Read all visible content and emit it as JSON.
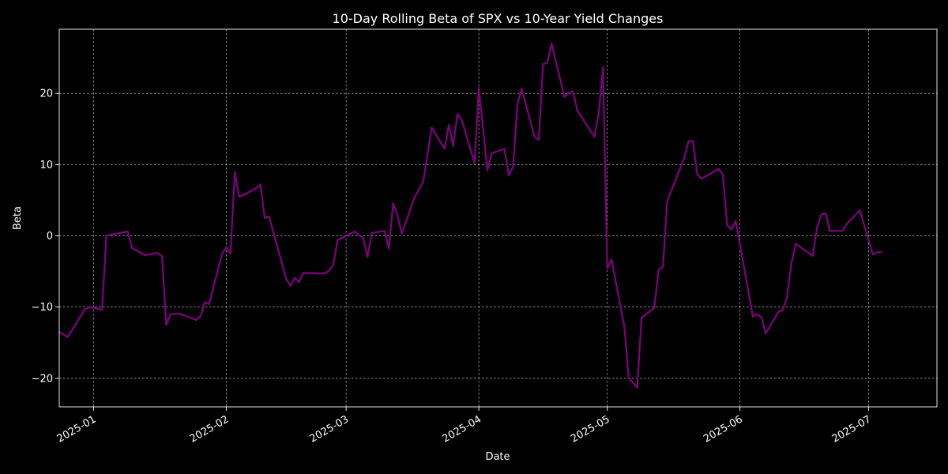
{
  "colors": {
    "background": "#000000",
    "foreground": "#ffffff",
    "line": "#800080"
  },
  "chart_data": {
    "type": "line",
    "title": "10-Day Rolling Beta of SPX vs 10-Year Yield Changes",
    "xlabel": "Date",
    "ylabel": "Beta",
    "xlim": [
      "2024-12-24",
      "2025-07-17"
    ],
    "ylim": [
      -24,
      29
    ],
    "grid": true,
    "x_ticks": [
      "2025-01",
      "2025-02",
      "2025-03",
      "2025-04",
      "2025-05",
      "2025-06",
      "2025-07"
    ],
    "x_tick_dates": [
      "2025-01-01",
      "2025-02-01",
      "2025-03-01",
      "2025-04-01",
      "2025-05-01",
      "2025-06-01",
      "2025-07-01"
    ],
    "y_ticks": [
      -20,
      -10,
      0,
      10,
      20
    ],
    "y_tick_labels": [
      "−20",
      "−10",
      "0",
      "10",
      "20"
    ],
    "series": [
      {
        "color": "#800080",
        "points": [
          [
            "2024-12-24",
            -13.5
          ],
          [
            "2024-12-26",
            -14.2
          ],
          [
            "2024-12-30",
            -10.3
          ],
          [
            "2024-12-31",
            -10.0
          ],
          [
            "2025-01-02",
            -10.2
          ],
          [
            "2025-01-03",
            -10.4
          ],
          [
            "2025-01-04",
            0.0
          ],
          [
            "2025-01-08",
            0.5
          ],
          [
            "2025-01-09",
            0.6
          ],
          [
            "2025-01-10",
            -1.7
          ],
          [
            "2025-01-13",
            -2.7
          ],
          [
            "2025-01-16",
            -2.4
          ],
          [
            "2025-01-17",
            -2.9
          ],
          [
            "2025-01-18",
            -12.5
          ],
          [
            "2025-01-19",
            -11.0
          ],
          [
            "2025-01-21",
            -10.9
          ],
          [
            "2025-01-25",
            -11.8
          ],
          [
            "2025-01-26",
            -11.3
          ],
          [
            "2025-01-27",
            -9.3
          ],
          [
            "2025-01-28",
            -9.6
          ],
          [
            "2025-01-31",
            -2.6
          ],
          [
            "2025-02-01",
            -1.6
          ],
          [
            "2025-02-02",
            -2.5
          ],
          [
            "2025-02-03",
            9.0
          ],
          [
            "2025-02-04",
            5.5
          ],
          [
            "2025-02-05",
            5.7
          ],
          [
            "2025-02-08",
            6.7
          ],
          [
            "2025-02-09",
            7.2
          ],
          [
            "2025-02-10",
            2.5
          ],
          [
            "2025-02-11",
            2.7
          ],
          [
            "2025-02-15",
            -6.0
          ],
          [
            "2025-02-16",
            -7.0
          ],
          [
            "2025-02-17",
            -5.9
          ],
          [
            "2025-02-18",
            -6.5
          ],
          [
            "2025-02-19",
            -5.2
          ],
          [
            "2025-02-24",
            -5.3
          ],
          [
            "2025-02-25",
            -4.9
          ],
          [
            "2025-02-26",
            -4.1
          ],
          [
            "2025-02-27",
            -0.6
          ],
          [
            "2025-03-03",
            0.6
          ],
          [
            "2025-03-05",
            -0.3
          ],
          [
            "2025-03-06",
            -3.0
          ],
          [
            "2025-03-07",
            0.4
          ],
          [
            "2025-03-09",
            0.6
          ],
          [
            "2025-03-10",
            0.7
          ],
          [
            "2025-03-11",
            -1.8
          ],
          [
            "2025-03-12",
            4.6
          ],
          [
            "2025-03-13",
            2.9
          ],
          [
            "2025-03-14",
            0.3
          ],
          [
            "2025-03-17",
            5.4
          ],
          [
            "2025-03-19",
            7.6
          ],
          [
            "2025-03-21",
            15.2
          ],
          [
            "2025-03-24",
            12.2
          ],
          [
            "2025-03-25",
            15.6
          ],
          [
            "2025-03-26",
            12.6
          ],
          [
            "2025-03-27",
            17.1
          ],
          [
            "2025-03-28",
            16.3
          ],
          [
            "2025-03-31",
            10.2
          ],
          [
            "2025-04-01",
            20.8
          ],
          [
            "2025-04-03",
            9.2
          ],
          [
            "2025-04-04",
            11.6
          ],
          [
            "2025-04-07",
            12.2
          ],
          [
            "2025-04-08",
            8.5
          ],
          [
            "2025-04-09",
            9.7
          ],
          [
            "2025-04-10",
            18.4
          ],
          [
            "2025-04-11",
            20.7
          ],
          [
            "2025-04-14",
            13.9
          ],
          [
            "2025-04-15",
            13.5
          ],
          [
            "2025-04-16",
            24.1
          ],
          [
            "2025-04-17",
            24.3
          ],
          [
            "2025-04-18",
            27.0
          ],
          [
            "2025-04-21",
            19.5
          ],
          [
            "2025-04-22",
            20.1
          ],
          [
            "2025-04-23",
            20.3
          ],
          [
            "2025-04-24",
            17.6
          ],
          [
            "2025-04-28",
            13.9
          ],
          [
            "2025-04-29",
            17.2
          ],
          [
            "2025-04-30",
            23.7
          ],
          [
            "2025-05-01",
            -4.6
          ],
          [
            "2025-05-02",
            -3.3
          ],
          [
            "2025-05-05",
            -12.8
          ],
          [
            "2025-05-06",
            -19.9
          ],
          [
            "2025-05-08",
            -21.3
          ],
          [
            "2025-05-09",
            -11.5
          ],
          [
            "2025-05-12",
            -10.1
          ],
          [
            "2025-05-13",
            -4.8
          ],
          [
            "2025-05-14",
            -4.3
          ],
          [
            "2025-05-15",
            4.9
          ],
          [
            "2025-05-19",
            10.9
          ],
          [
            "2025-05-20",
            13.3
          ],
          [
            "2025-05-21",
            13.3
          ],
          [
            "2025-05-22",
            8.7
          ],
          [
            "2025-05-23",
            8.0
          ],
          [
            "2025-05-27",
            9.4
          ],
          [
            "2025-05-28",
            8.6
          ],
          [
            "2025-05-29",
            1.5
          ],
          [
            "2025-05-30",
            0.9
          ],
          [
            "2025-05-31",
            2.1
          ],
          [
            "2025-06-04",
            -11.3
          ],
          [
            "2025-06-05",
            -11.0
          ],
          [
            "2025-06-06",
            -11.4
          ],
          [
            "2025-06-07",
            -13.7
          ],
          [
            "2025-06-10",
            -10.7
          ],
          [
            "2025-06-11",
            -10.4
          ],
          [
            "2025-06-12",
            -8.6
          ],
          [
            "2025-06-13",
            -3.9
          ],
          [
            "2025-06-14",
            -1.1
          ],
          [
            "2025-06-18",
            -2.8
          ],
          [
            "2025-06-19",
            1.2
          ],
          [
            "2025-06-20",
            3.0
          ],
          [
            "2025-06-21",
            3.2
          ],
          [
            "2025-06-22",
            0.7
          ],
          [
            "2025-06-25",
            0.7
          ],
          [
            "2025-06-26",
            1.7
          ],
          [
            "2025-06-29",
            3.6
          ],
          [
            "2025-07-02",
            -2.6
          ],
          [
            "2025-07-03",
            -2.3
          ],
          [
            "2025-07-04",
            -2.3
          ]
        ]
      }
    ]
  }
}
